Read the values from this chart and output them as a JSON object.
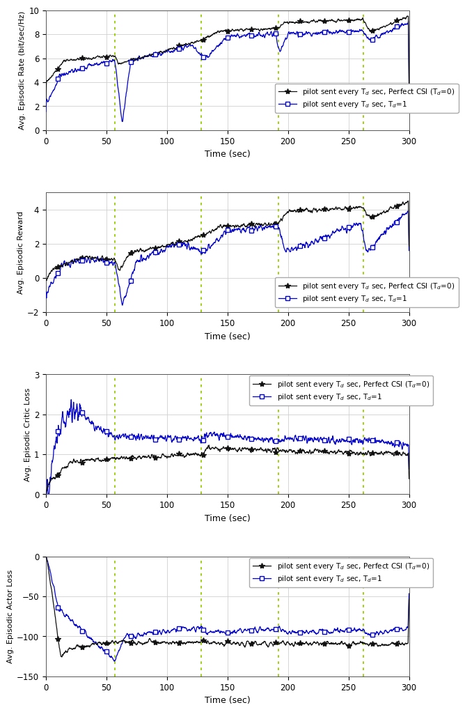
{
  "xlim": [
    0,
    300
  ],
  "vlines": [
    57,
    128,
    192,
    262
  ],
  "vline_color": "#99cc00",
  "subplots": [
    {
      "ylabel": "Avg. Episodic Rate (bit/sec/Hz)",
      "xlabel": "Time (sec)",
      "ylim": [
        0,
        10
      ],
      "yticks": [
        0,
        2,
        4,
        6,
        8,
        10
      ]
    },
    {
      "ylabel": "Avg. Episodic Reward",
      "xlabel": "Time (sec)",
      "ylim": [
        -2,
        5
      ],
      "yticks": [
        -2,
        0,
        2,
        4
      ]
    },
    {
      "ylabel": "Avg. Episodic Critic Loss",
      "xlabel": "Time (sec)",
      "ylim": [
        0,
        3
      ],
      "yticks": [
        0,
        1,
        2,
        3
      ]
    },
    {
      "ylabel": "Avg. Episodic Actor Loss",
      "xlabel": "Time (sec)",
      "ylim": [
        -150,
        0
      ],
      "yticks": [
        -150,
        -100,
        -50,
        0
      ]
    }
  ],
  "legend_black": "pilot sent every T$_d$ sec, Perfect CSI (T$_d$=0)",
  "legend_blue": "pilot sent every T$_d$ sec, T$_d$=1",
  "black_color": "#111111",
  "blue_color": "#0000cc",
  "seed": 1234
}
